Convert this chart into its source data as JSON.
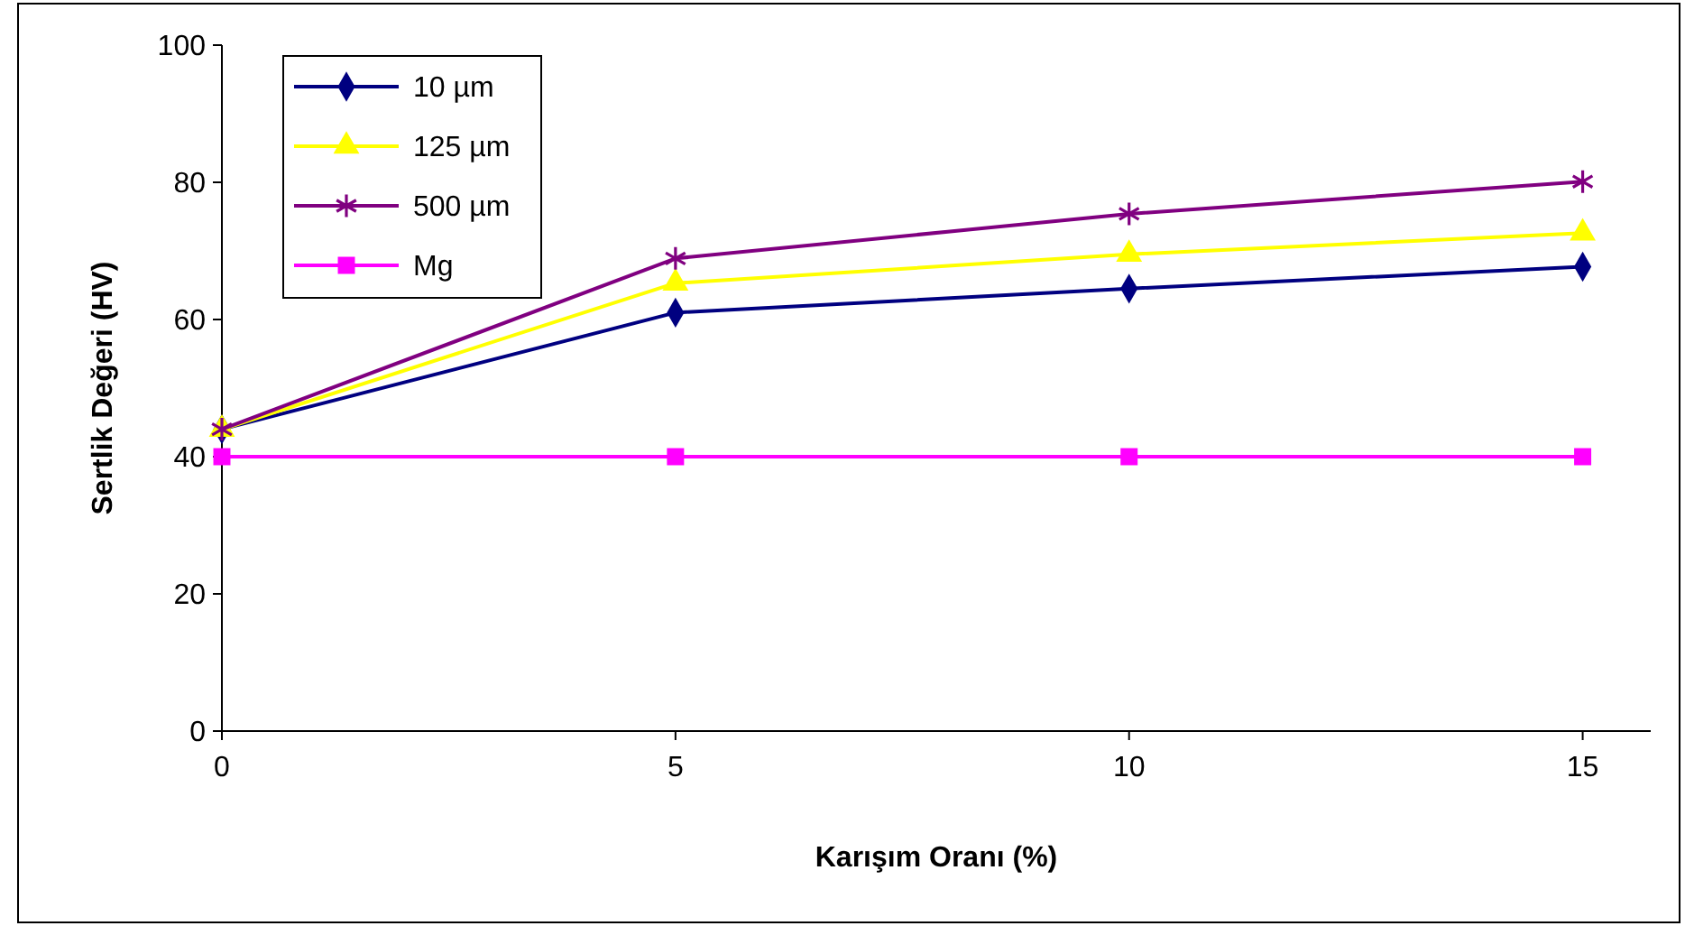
{
  "chart_data": {
    "type": "line",
    "xlabel": "Karışım Oranı (%)",
    "ylabel": "Sertlik Değeri (HV)",
    "x": [
      0,
      5,
      10,
      15
    ],
    "xlim": [
      0,
      15.75
    ],
    "xticks": [
      0,
      5,
      10,
      15
    ],
    "ylim": [
      0,
      100
    ],
    "yticks": [
      0,
      20,
      40,
      60,
      80,
      100
    ],
    "grid": false,
    "legend": "top left",
    "line_style": "solid",
    "series": [
      {
        "name": "10 µm",
        "color": "#000080",
        "marker": "diamond",
        "values": [
          44,
          61,
          64.5,
          67.7
        ]
      },
      {
        "name": "125 µm",
        "color": "#ffff00",
        "marker": "triangle",
        "values": [
          44,
          65.3,
          69.5,
          72.6
        ]
      },
      {
        "name": "500 µm",
        "color": "#800080",
        "marker": "cross",
        "values": [
          44,
          68.9,
          75.4,
          80.1
        ]
      },
      {
        "name": "Mg",
        "color": "#ff00ff",
        "marker": "square",
        "values": [
          40,
          40,
          40,
          40
        ]
      }
    ]
  }
}
